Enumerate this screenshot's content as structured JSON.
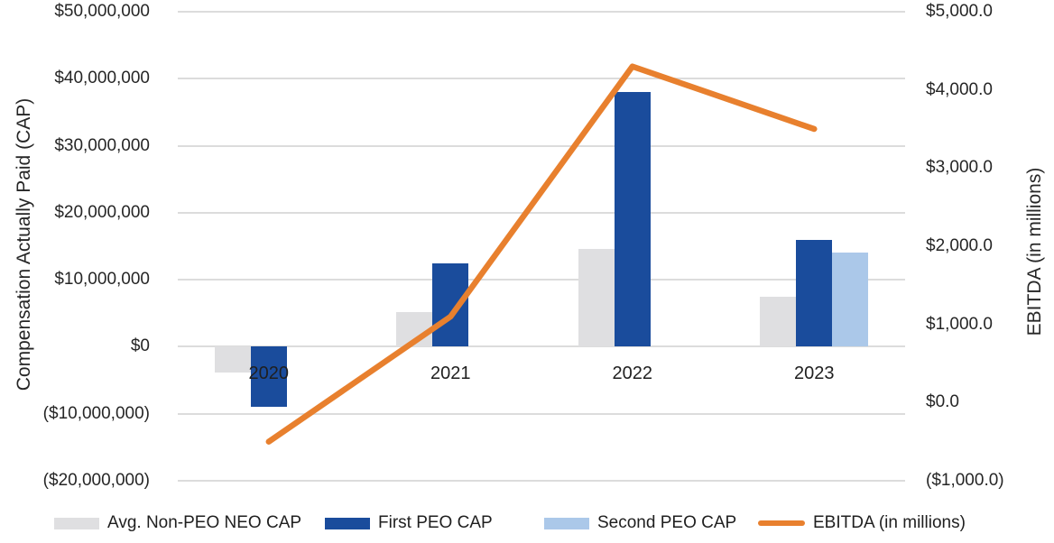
{
  "chart_data": {
    "type": "combo-bar-line",
    "title": "",
    "categories": [
      "2020",
      "2021",
      "2022",
      "2023"
    ],
    "series": [
      {
        "name": "Avg. Non-PEO NEO CAP",
        "type": "bar",
        "axis": "left",
        "color_key": "gray",
        "values": [
          -3800000,
          5200000,
          14600000,
          7500000
        ]
      },
      {
        "name": "First PEO CAP",
        "type": "bar",
        "axis": "left",
        "color_key": "dark_blue",
        "values": [
          -9000000,
          12500000,
          38000000,
          16000000
        ]
      },
      {
        "name": "Second PEO CAP",
        "type": "bar",
        "axis": "left",
        "color_key": "light_blue",
        "values": [
          null,
          null,
          null,
          14000000
        ]
      },
      {
        "name": "EBITDA (in millions)",
        "type": "line",
        "axis": "right",
        "color_key": "orange",
        "values": [
          -500,
          1100,
          4300,
          3500
        ]
      }
    ],
    "left_axis": {
      "title": "Compensation Actually Paid (CAP)",
      "min": -20000000,
      "max": 50000000,
      "step": 10000000,
      "tick_labels": [
        "$50,000,000",
        "$40,000,000",
        "$30,000,000",
        "$20,000,000",
        "$10,000,000",
        "$0",
        "($10,000,000)",
        "($20,000,000)"
      ]
    },
    "right_axis": {
      "title": "EBITDA (in millions)",
      "min": -1000,
      "max": 5000,
      "step": 1000,
      "tick_labels": [
        "$5,000.0",
        "$4,000.0",
        "$3,000.0",
        "$2,000.0",
        "$1,000.0",
        "$0.0",
        "($1,000.0)"
      ]
    },
    "grid": true,
    "legend_position": "bottom"
  },
  "legend": {
    "items": [
      {
        "label": "Avg. Non-PEO NEO CAP",
        "color_key": "gray",
        "marker": "swatch"
      },
      {
        "label": "First PEO CAP",
        "color_key": "dark_blue",
        "marker": "swatch"
      },
      {
        "label": "Second PEO CAP",
        "color_key": "light_blue",
        "marker": "swatch"
      },
      {
        "label": "EBITDA (in millions)",
        "color_key": "orange",
        "marker": "line"
      }
    ]
  },
  "colors": {
    "gray": "#dfdfe1",
    "dark_blue": "#1a4c9c",
    "light_blue": "#abc8e9",
    "orange": "#e8802e",
    "gridline": "#dcdcdc",
    "text": "#262626"
  }
}
